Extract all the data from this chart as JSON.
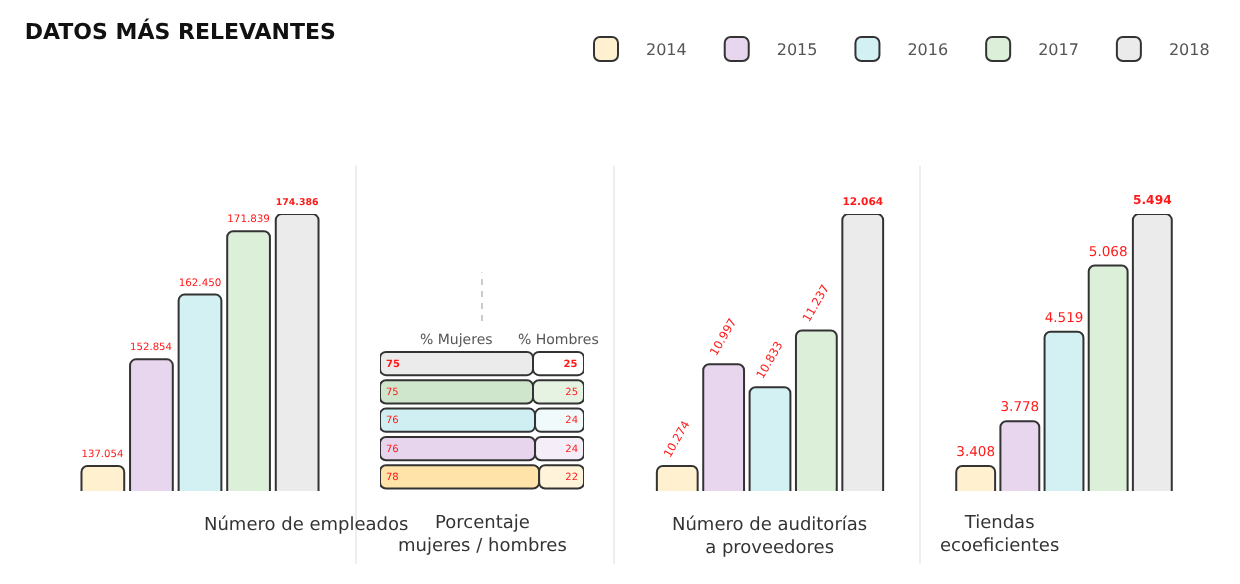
{
  "chart_data": [
    {
      "type": "bar",
      "title": "DATOS MÁS RELEVANTES",
      "xlabel": "Número de empleados",
      "categories": [
        null
      ],
      "legend": "top right",
      "series": [
        {
          "name": "2014",
          "color": "#fff1cf",
          "values": [
            137054
          ],
          "value_labels": [
            "137.054"
          ]
        },
        {
          "name": "2015",
          "color": "#e8d6ee",
          "values": [
            152854
          ],
          "value_labels": [
            "152.854"
          ]
        },
        {
          "name": "2016",
          "color": "#d3f0f3",
          "values": [
            162450
          ],
          "value_labels": [
            "162.450"
          ]
        },
        {
          "name": "2017",
          "color": "#dcefd9",
          "values": [
            171839
          ],
          "value_labels": [
            "171.839"
          ]
        },
        {
          "name": "2018",
          "color": "#ebebeb",
          "values": [
            174386
          ],
          "value_labels": [
            "174.386"
          ]
        }
      ]
    },
    {
      "type": "bar",
      "orientation": "horizontal",
      "stacked": true,
      "xlabel": "Porcentaje mujeres / hombres",
      "categories": [
        null,
        null,
        null,
        null,
        null
      ],
      "xlim": [
        0,
        100
      ],
      "data_labels": true,
      "series": [
        {
          "name": "% Mujeres",
          "colors": [
            "#ebebeb",
            "#cfe6cc",
            "#cfeff3",
            "#e6d5ec",
            "#ffe3a8"
          ],
          "values": [
            75,
            75,
            76,
            76,
            78
          ]
        },
        {
          "name": "% Hombres",
          "colors": [
            "#ffffff",
            "#e6f3e3",
            "#f0fafb",
            "#f5edf8",
            "#fff3d9"
          ],
          "values": [
            25,
            25,
            24,
            24,
            22
          ]
        }
      ]
    },
    {
      "type": "bar",
      "xlabel": "Número de auditorías a proveedores",
      "categories": [
        null
      ],
      "series": [
        {
          "color": "#fff1cf",
          "values": [
            10274
          ],
          "value_labels": [
            "10.274"
          ]
        },
        {
          "color": "#e8d6ee",
          "values": [
            10997
          ],
          "value_labels": [
            "10.997"
          ]
        },
        {
          "color": "#d3f0f3",
          "values": [
            10833
          ],
          "value_labels": [
            "10.833"
          ]
        },
        {
          "color": "#dcefd9",
          "values": [
            11237
          ],
          "value_labels": [
            "11.237"
          ]
        },
        {
          "color": "#ebebeb",
          "values": [
            12064
          ],
          "value_labels": [
            "12.064"
          ]
        }
      ]
    },
    {
      "type": "bar",
      "xlabel": "Tiendas ecoeficientes",
      "categories": [
        null
      ],
      "series": [
        {
          "color": "#fff1cf",
          "values": [
            3408
          ],
          "value_labels": [
            "3.408"
          ]
        },
        {
          "color": "#e8d6ee",
          "values": [
            3778
          ],
          "value_labels": [
            "3.778"
          ]
        },
        {
          "color": "#d3f0f3",
          "values": [
            4519
          ],
          "value_labels": [
            "4.519"
          ]
        },
        {
          "color": "#dcefd9",
          "values": [
            5068
          ],
          "value_labels": [
            "5.068"
          ]
        },
        {
          "color": "#ebebeb",
          "values": [
            5494
          ],
          "value_labels": [
            "5.494"
          ]
        }
      ]
    }
  ]
}
